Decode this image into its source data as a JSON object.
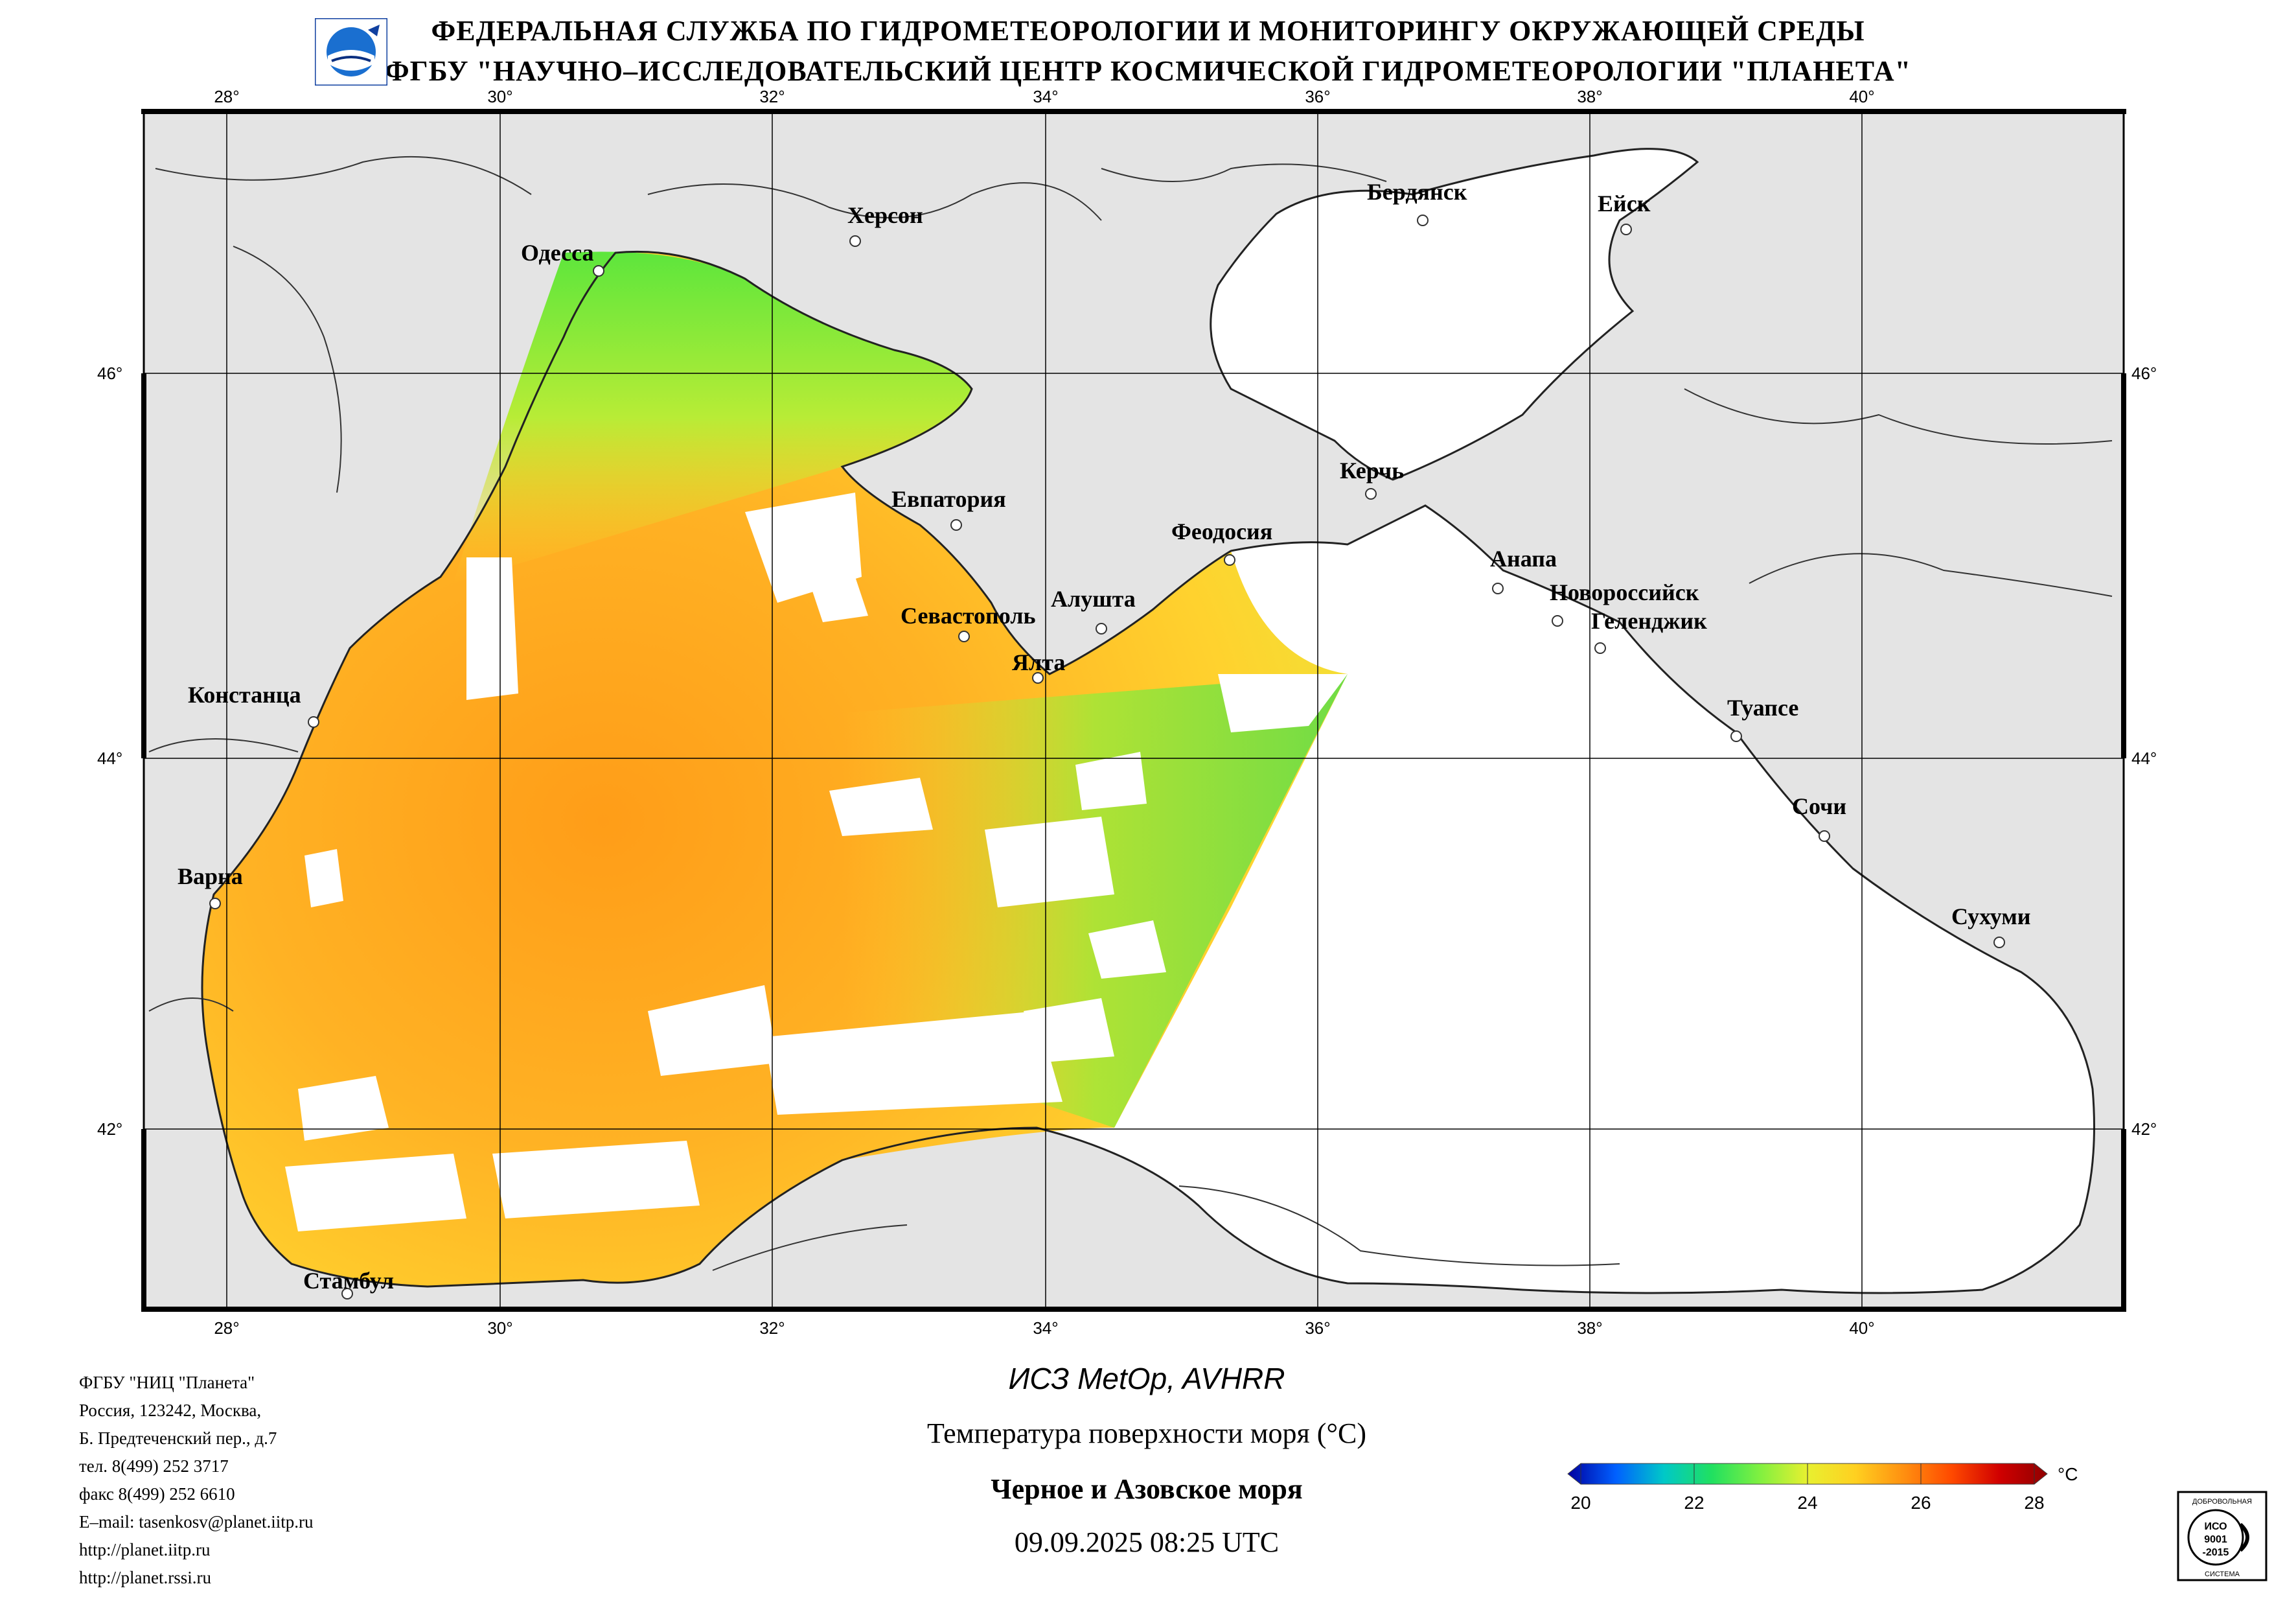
{
  "header": {
    "line1": "ФЕДЕРАЛЬНАЯ СЛУЖБА ПО ГИДРОМЕТЕОРОЛОГИИ И МОНИТОРИНГУ ОКРУЖАЮЩЕЙ СРЕДЫ",
    "line2": "ФГБУ \"НАУЧНО–ИССЛЕДОВАТЕЛЬСКИЙ ЦЕНТР КОСМИЧЕСКОЙ ГИДРОМЕТЕОРОЛОГИИ \"ПЛАНЕТА\""
  },
  "map": {
    "lon_labels": [
      "28°",
      "30°",
      "32°",
      "34°",
      "36°",
      "38°",
      "40°"
    ],
    "lat_labels": [
      "46°",
      "44°",
      "42°"
    ],
    "cities": {
      "odessa": "Одесса",
      "kherson": "Херсон",
      "berdyansk": "Бердянск",
      "yeysk": "Ейск",
      "yevpatoria": "Евпатория",
      "kerch": "Керчь",
      "feodosia": "Феодосия",
      "sevastopol": "Севастополь",
      "alushta": "Алушта",
      "yalta": "Ялта",
      "anapa": "Анапа",
      "novorossiysk": "Новороссийск",
      "gelendzhik": "Геленджик",
      "constanta": "Констанца",
      "tuapse": "Туапсе",
      "sochi": "Сочи",
      "varna": "Варна",
      "sukhumi": "Сухуми",
      "istanbul": "Стамбул"
    },
    "colors": {
      "land": "#e4e4e4",
      "water_nodata": "#ffffff",
      "grid": "#000000"
    }
  },
  "footer": {
    "org_lines": [
      "ФГБУ \"НИЦ \"Планета\"",
      "Россия, 123242, Москва,",
      "Б. Предтеченский пер., д.7",
      "тел. 8(499) 252 3717",
      "факс 8(499) 252 6610",
      "E–mail: tasenkosv@planet.iitp.ru",
      "http://planet.iitp.ru",
      "http://planet.rssi.ru"
    ],
    "satellite": "ИСЗ MetOp, AVHRR",
    "product": "Температура поверхности моря (°C)",
    "region": "Черное и Азовское моря",
    "datetime": "09.09.2025 08:25 UTC"
  },
  "colorbar": {
    "unit": "°C",
    "ticks": [
      "20",
      "22",
      "24",
      "26",
      "28"
    ],
    "min": 20,
    "max": 28,
    "colors": [
      "#0000a0",
      "#0060ff",
      "#00c8c8",
      "#20e060",
      "#80f040",
      "#e8f030",
      "#ffd020",
      "#ff9010",
      "#ff4a00",
      "#d00000",
      "#900000"
    ]
  },
  "iso_badge": {
    "top": "ДОБРОВОЛЬНАЯ",
    "mid1": "ИСО",
    "mid2": "9001",
    "mid3": "-2015",
    "bottom": "СИСТЕМА"
  }
}
